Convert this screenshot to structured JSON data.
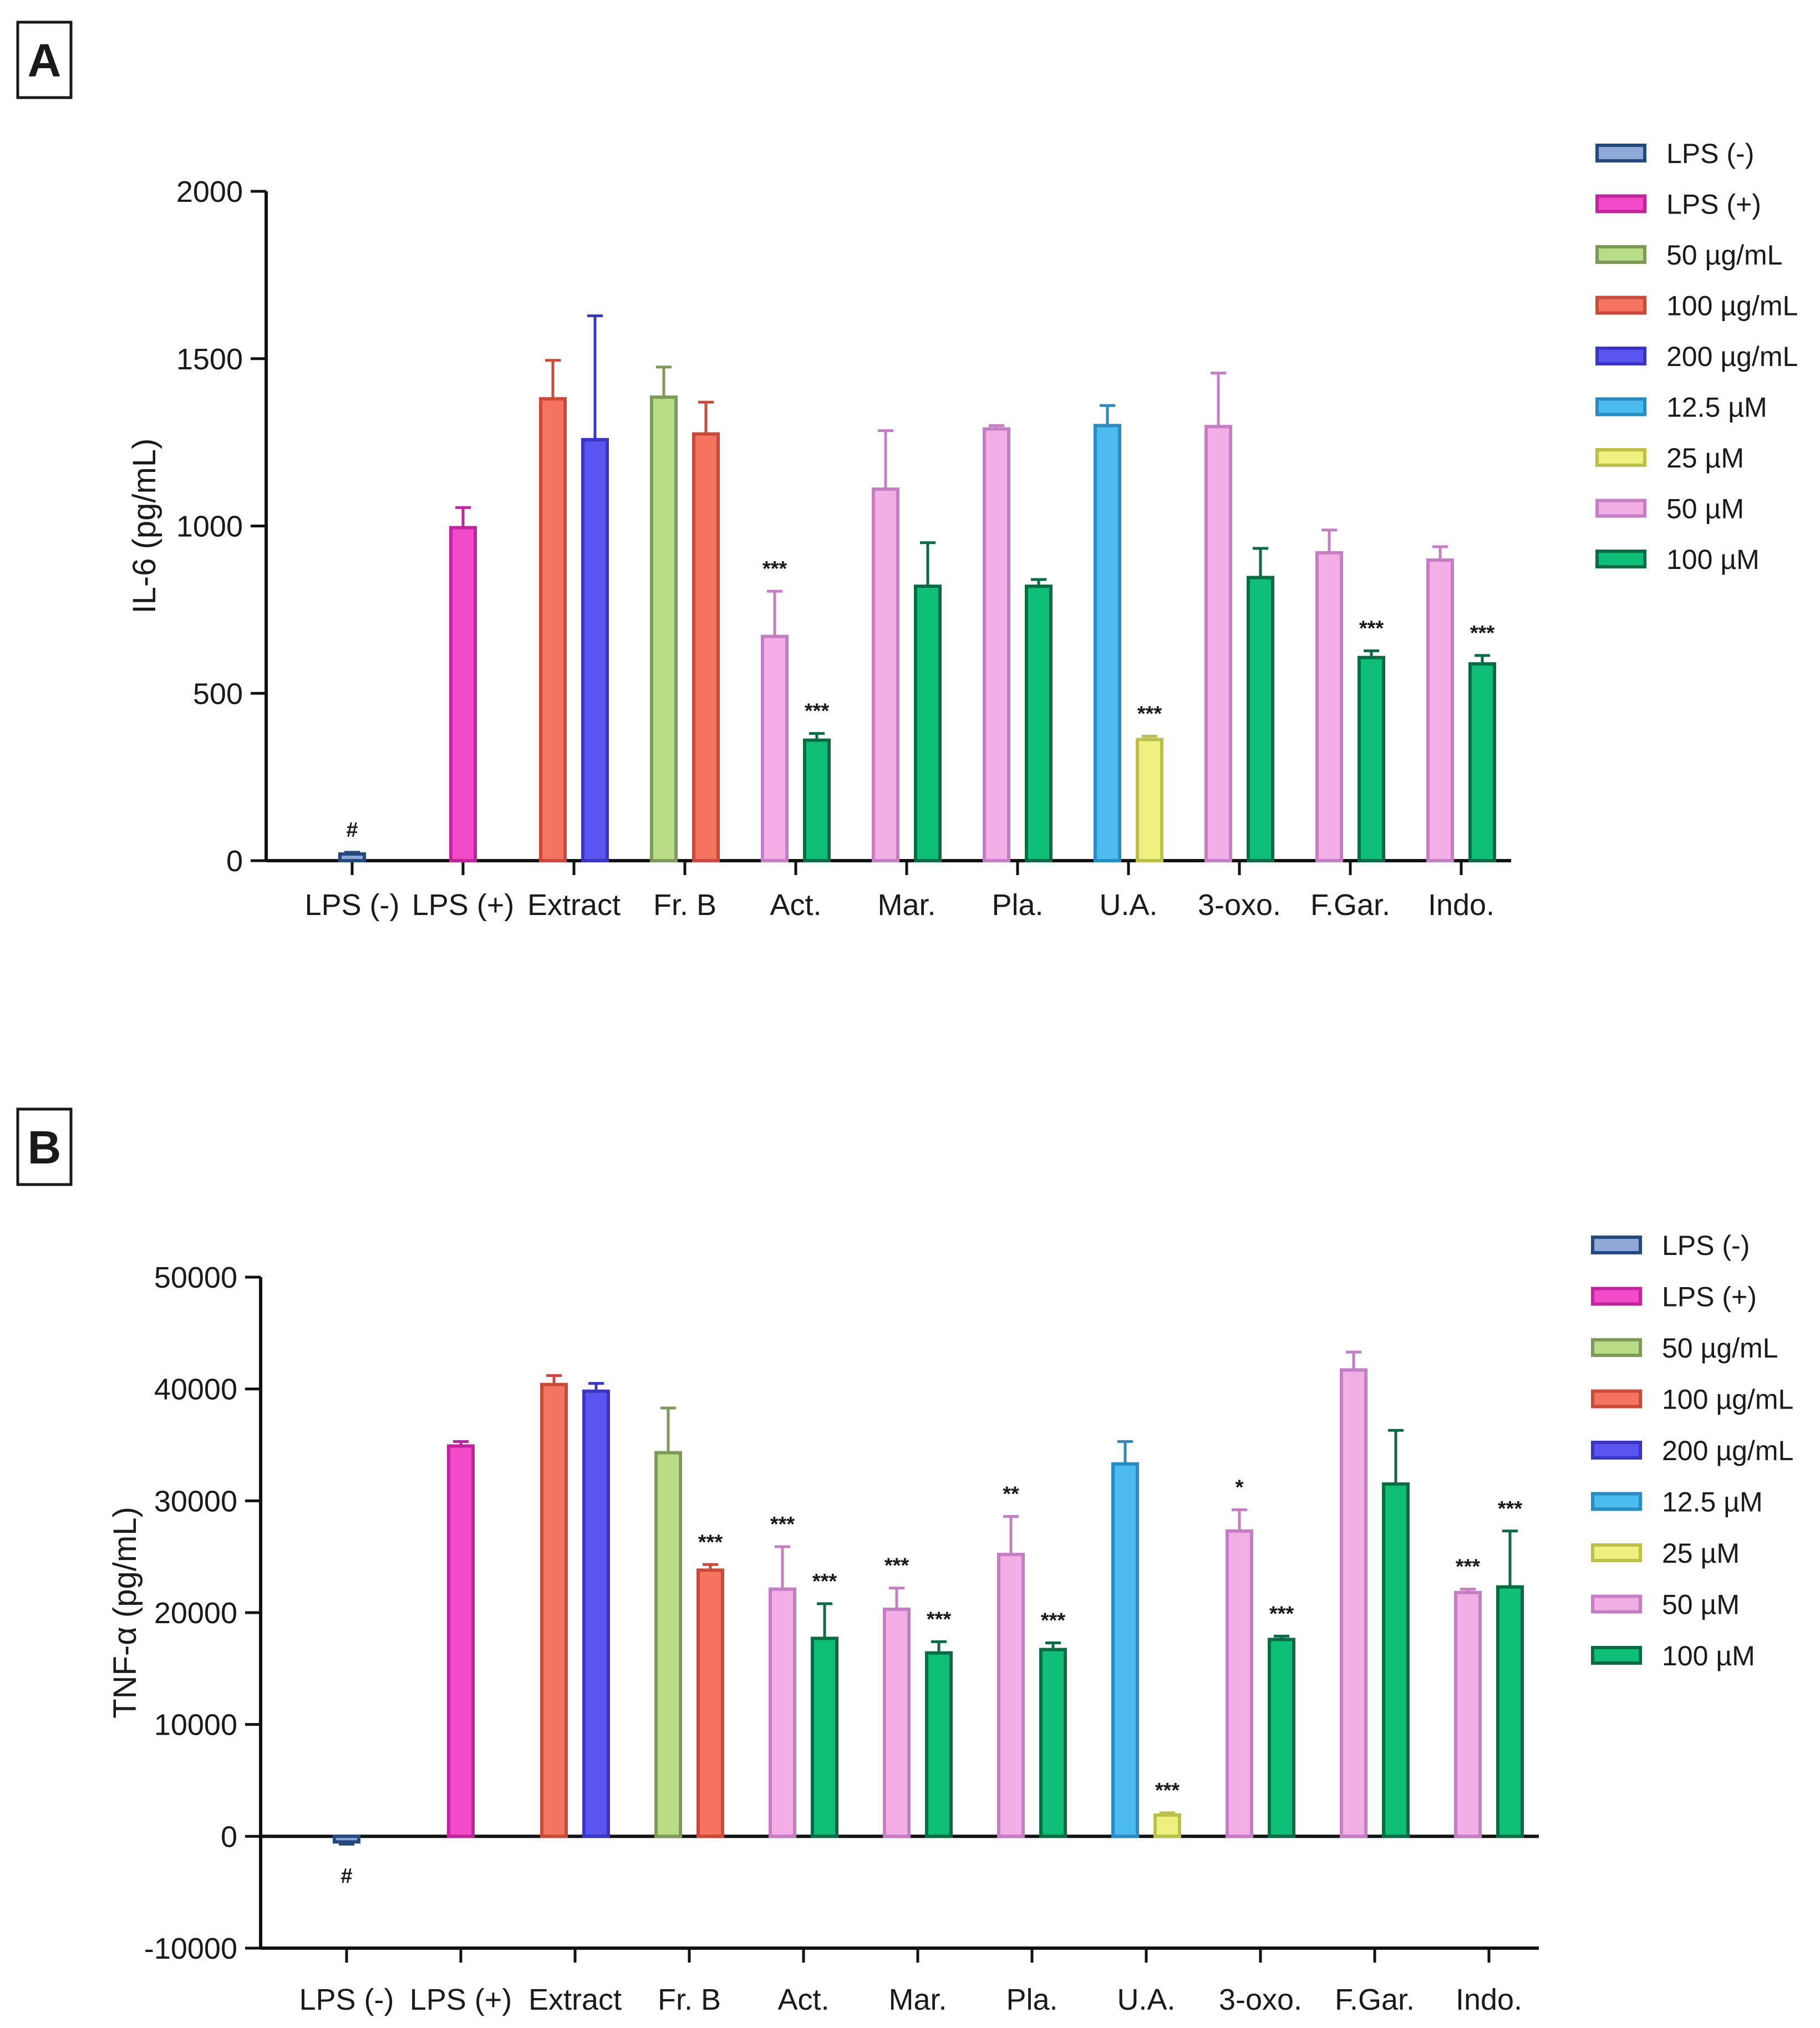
{
  "figure": {
    "panels": [
      {
        "letter": "A"
      },
      {
        "letter": "B"
      }
    ]
  },
  "legend": [
    {
      "label": "LPS (-)",
      "fill": "#8ea9d8",
      "stroke": "#24497f"
    },
    {
      "label": "LPS (+)",
      "fill": "#f24ac8",
      "stroke": "#c0269c"
    },
    {
      "label": "50 µg/mL",
      "fill": "#b9dc86",
      "stroke": "#7e9a5a"
    },
    {
      "label": "100 µg/mL",
      "fill": "#f47460",
      "stroke": "#c94a3a"
    },
    {
      "label": "200 µg/mL",
      "fill": "#5a55ef",
      "stroke": "#3a36c2"
    },
    {
      "label": "12.5 µM",
      "fill": "#4cbcf0",
      "stroke": "#2a8bc0"
    },
    {
      "label": "25 µM",
      "fill": "#eef080",
      "stroke": "#bcbf4a"
    },
    {
      "label": "50 µM",
      "fill": "#f4aee6",
      "stroke": "#c47ec4"
    },
    {
      "label": "100 µM",
      "fill": "#0fbf78",
      "stroke": "#0b6b44"
    }
  ],
  "chart_data": [
    {
      "type": "bar",
      "panel": "A",
      "ylabel": "IL-6 (pg/mL)",
      "ylim": [
        0,
        2000
      ],
      "yticks": [
        "0",
        "500",
        "1000",
        "1500",
        "2000"
      ],
      "categories": [
        "LPS (-)",
        "LPS (+)",
        "Extract",
        "Fr. B",
        "Act.",
        "Mar.",
        "Pla.",
        "U.A.",
        "3-oxo.",
        "F.Gar.",
        "Indo."
      ],
      "bars": [
        {
          "category": "LPS (-)",
          "series": "LPS (-)",
          "value": 20,
          "error": 5,
          "sig": "#",
          "sig_pos": "above"
        },
        {
          "category": "LPS (+)",
          "series": "LPS (+)",
          "value": 995,
          "error": 60,
          "sig": ""
        },
        {
          "category": "Extract",
          "series": "100 µg/mL",
          "value": 1380,
          "error": 115,
          "sig": ""
        },
        {
          "category": "Extract",
          "series": "200 µg/mL",
          "value": 1258,
          "error": 370,
          "sig": ""
        },
        {
          "category": "Fr. B",
          "series": "50 µg/mL",
          "value": 1385,
          "error": 90,
          "sig": ""
        },
        {
          "category": "Fr. B",
          "series": "100 µg/mL",
          "value": 1275,
          "error": 95,
          "sig": ""
        },
        {
          "category": "Act.",
          "series": "50 µM",
          "value": 670,
          "error": 135,
          "sig": "***"
        },
        {
          "category": "Act.",
          "series": "100 µM",
          "value": 360,
          "error": 20,
          "sig": "***"
        },
        {
          "category": "Mar.",
          "series": "50 µM",
          "value": 1110,
          "error": 175,
          "sig": ""
        },
        {
          "category": "Mar.",
          "series": "100 µM",
          "value": 820,
          "error": 130,
          "sig": ""
        },
        {
          "category": "Pla.",
          "series": "50 µM",
          "value": 1290,
          "error": 10,
          "sig": ""
        },
        {
          "category": "Pla.",
          "series": "100 µM",
          "value": 820,
          "error": 20,
          "sig": ""
        },
        {
          "category": "U.A.",
          "series": "12.5 µM",
          "value": 1300,
          "error": 60,
          "sig": ""
        },
        {
          "category": "U.A.",
          "series": "25 µM",
          "value": 362,
          "error": 10,
          "sig": "***"
        },
        {
          "category": "3-oxo.",
          "series": "50 µM",
          "value": 1297,
          "error": 160,
          "sig": ""
        },
        {
          "category": "3-oxo.",
          "series": "100 µM",
          "value": 846,
          "error": 87,
          "sig": ""
        },
        {
          "category": "F.Gar.",
          "series": "50 µM",
          "value": 920,
          "error": 68,
          "sig": ""
        },
        {
          "category": "F.Gar.",
          "series": "100 µM",
          "value": 607,
          "error": 20,
          "sig": "***"
        },
        {
          "category": "Indo.",
          "series": "50 µM",
          "value": 898,
          "error": 40,
          "sig": ""
        },
        {
          "category": "Indo.",
          "series": "100 µM",
          "value": 588,
          "error": 25,
          "sig": "***"
        }
      ]
    },
    {
      "type": "bar",
      "panel": "B",
      "ylabel": "TNF-α (pg/mL)",
      "ylim": [
        -10000,
        50000
      ],
      "yticks": [
        "-10000",
        "0",
        "10000",
        "20000",
        "30000",
        "40000",
        "50000"
      ],
      "categories": [
        "LPS (-)",
        "LPS (+)",
        "Extract",
        "Fr. B",
        "Act.",
        "Mar.",
        "Pla.",
        "U.A.",
        "3-oxo.",
        "F.Gar.",
        "Indo."
      ],
      "bars": [
        {
          "category": "LPS (-)",
          "series": "LPS (-)",
          "value": -500,
          "error": 200,
          "sig": "#",
          "sig_pos": "below"
        },
        {
          "category": "LPS (+)",
          "series": "LPS (+)",
          "value": 34900,
          "error": 400,
          "sig": ""
        },
        {
          "category": "Extract",
          "series": "100 µg/mL",
          "value": 40400,
          "error": 800,
          "sig": ""
        },
        {
          "category": "Extract",
          "series": "200 µg/mL",
          "value": 39800,
          "error": 700,
          "sig": ""
        },
        {
          "category": "Fr. B",
          "series": "50 µg/mL",
          "value": 34300,
          "error": 4000,
          "sig": ""
        },
        {
          "category": "Fr. B",
          "series": "100 µg/mL",
          "value": 23800,
          "error": 500,
          "sig": "***"
        },
        {
          "category": "Act.",
          "series": "50 µM",
          "value": 22100,
          "error": 3800,
          "sig": "***"
        },
        {
          "category": "Act.",
          "series": "100 µM",
          "value": 17700,
          "error": 3100,
          "sig": "***"
        },
        {
          "category": "Mar.",
          "series": "50 µM",
          "value": 20300,
          "error": 1900,
          "sig": "***"
        },
        {
          "category": "Mar.",
          "series": "100 µM",
          "value": 16400,
          "error": 1000,
          "sig": "***"
        },
        {
          "category": "Pla.",
          "series": "50 µM",
          "value": 25200,
          "error": 3400,
          "sig": "**"
        },
        {
          "category": "Pla.",
          "series": "100 µM",
          "value": 16700,
          "error": 600,
          "sig": "***"
        },
        {
          "category": "U.A.",
          "series": "12.5 µM",
          "value": 33300,
          "error": 2000,
          "sig": ""
        },
        {
          "category": "U.A.",
          "series": "25 µM",
          "value": 1900,
          "error": 200,
          "sig": "***"
        },
        {
          "category": "3-oxo.",
          "series": "50 µM",
          "value": 27300,
          "error": 1900,
          "sig": "*"
        },
        {
          "category": "3-oxo.",
          "series": "100 µM",
          "value": 17600,
          "error": 300,
          "sig": "***"
        },
        {
          "category": "F.Gar.",
          "series": "50 µM",
          "value": 41700,
          "error": 1600,
          "sig": ""
        },
        {
          "category": "F.Gar.",
          "series": "100 µM",
          "value": 31500,
          "error": 4800,
          "sig": ""
        },
        {
          "category": "Indo.",
          "series": "50 µM",
          "value": 21800,
          "error": 300,
          "sig": "***"
        },
        {
          "category": "Indo.",
          "series": "100 µM",
          "value": 22300,
          "error": 5000,
          "sig": "***"
        }
      ]
    }
  ]
}
